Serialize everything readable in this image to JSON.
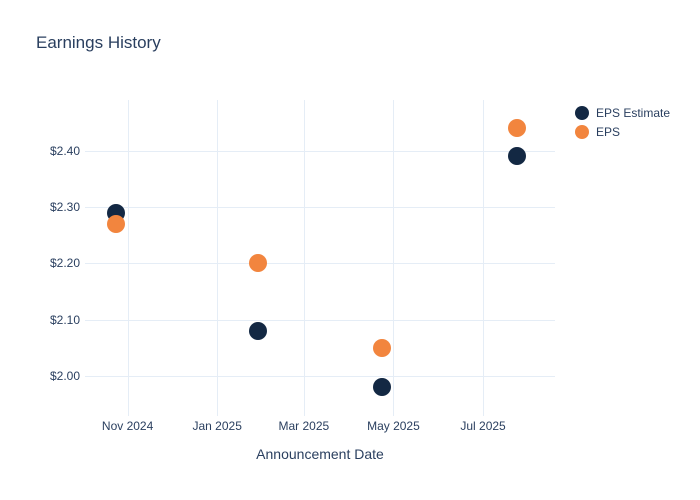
{
  "title": "Earnings History",
  "colors": {
    "eps_estimate": "#132843",
    "eps": "#F2853E",
    "text": "#2a3f5f",
    "gridline": "#e5edf6",
    "background": "#ffffff"
  },
  "chart_data": {
    "type": "scatter",
    "title": "Earnings History",
    "xlabel": "Announcement Date",
    "ylabel": "",
    "grid": true,
    "legend_position": "top-right",
    "x_range": [
      "2024-10-03",
      "2025-08-19"
    ],
    "ylim": [
      1.94,
      2.49
    ],
    "x_ticks": [
      {
        "label": "Nov 2024",
        "date": "2024-11-01"
      },
      {
        "label": "Jan 2025",
        "date": "2025-01-01"
      },
      {
        "label": "Mar 2025",
        "date": "2025-03-01"
      },
      {
        "label": "May 2025",
        "date": "2025-05-01"
      },
      {
        "label": "Jul 2025",
        "date": "2025-07-01"
      }
    ],
    "y_ticks": [
      {
        "label": "$2.00",
        "value": 2.0
      },
      {
        "label": "$2.10",
        "value": 2.1
      },
      {
        "label": "$2.20",
        "value": 2.2
      },
      {
        "label": "$2.30",
        "value": 2.3
      },
      {
        "label": "$2.40",
        "value": 2.4
      }
    ],
    "series": [
      {
        "name": "EPS Estimate",
        "color": "#132843",
        "points": [
          {
            "x": "2024-10-24",
            "y": 2.29
          },
          {
            "x": "2025-01-29",
            "y": 2.08
          },
          {
            "x": "2025-04-23",
            "y": 1.98
          },
          {
            "x": "2025-07-24",
            "y": 2.39
          }
        ]
      },
      {
        "name": "EPS",
        "color": "#F2853E",
        "points": [
          {
            "x": "2024-10-24",
            "y": 2.27
          },
          {
            "x": "2025-01-29",
            "y": 2.2
          },
          {
            "x": "2025-04-23",
            "y": 2.05
          },
          {
            "x": "2025-07-24",
            "y": 2.44
          }
        ]
      }
    ]
  }
}
